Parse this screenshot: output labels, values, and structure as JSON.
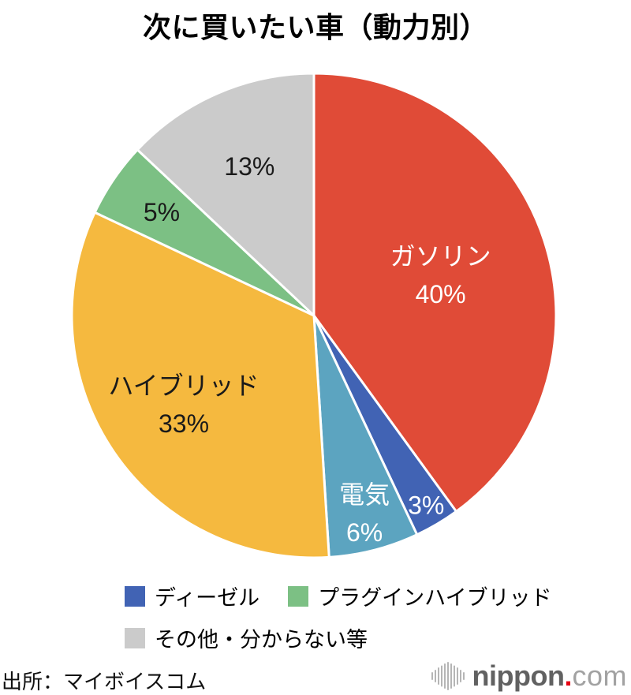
{
  "title": "次に買いたい車（動力別）",
  "source": "出所：マイボイスコム",
  "logo": {
    "icon": "soundwave-bars-icon",
    "text_main": "nippon",
    "text_dot": ".",
    "text_suffix": "com",
    "dot_color": "#e60012",
    "main_color": "#616161",
    "suffix_color": "#a2a2a2"
  },
  "chart_data": {
    "type": "pie",
    "title": "次に買いたい車（動力別）",
    "direction": "clockwise",
    "start_angle_deg": 0,
    "unit": "%",
    "slices": [
      {
        "label": "ガソリン",
        "value": 40,
        "percent_label": "40%",
        "color": "#E04B37",
        "text_color": "#ffffff",
        "show_name_inside": true,
        "label_r_frac": 0.55
      },
      {
        "label": "ディーゼル",
        "value": 3,
        "percent_label": "3%",
        "color": "#4163B4",
        "text_color": "#ffffff",
        "show_name_inside": false,
        "label_r_frac": 0.91
      },
      {
        "label": "電気",
        "value": 6,
        "percent_label": "6%",
        "color": "#5CA4C0",
        "text_color": "#ffffff",
        "show_name_inside": true,
        "label_r_frac": 0.84
      },
      {
        "label": "ハイブリッド",
        "value": 33,
        "percent_label": "33%",
        "color": "#F5B93F",
        "text_color": "#1a1a1a",
        "show_name_inside": true,
        "label_r_frac": 0.65
      },
      {
        "label": "プラグインハイブリッド",
        "value": 5,
        "percent_label": "5%",
        "color": "#7CC084",
        "text_color": "#1a1a1a",
        "show_name_inside": false,
        "label_r_frac": 0.76
      },
      {
        "label": "その他・分からない等",
        "value": 13,
        "percent_label": "13%",
        "color": "#CBCBCB",
        "text_color": "#1a1a1a",
        "show_name_inside": false,
        "label_r_frac": 0.67
      }
    ],
    "legend": {
      "position": "bottom",
      "items": [
        {
          "label": "ディーゼル",
          "color": "#4163B4"
        },
        {
          "label": "プラグインハイブリッド",
          "color": "#7CC084"
        },
        {
          "label": "その他・分からない等",
          "color": "#CBCBCB"
        }
      ]
    }
  }
}
